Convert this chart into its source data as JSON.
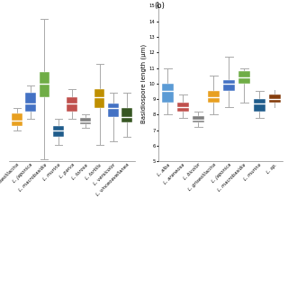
{
  "panel_a": {
    "species": [
      "L. griseolilacina",
      "L. japonica",
      "L. macrobasidia",
      "L. murina",
      "L. parva",
      "L. torosa",
      "L. tortilis",
      "L. versicolor",
      "L. vinceoavellanea"
    ],
    "colors": [
      "#E8A020",
      "#4472C4",
      "#70AD47",
      "#1F5C8B",
      "#C0504D",
      "#808080",
      "#BF8F00",
      "#4472C4",
      "#375623"
    ],
    "boxes": [
      {
        "whislo": 7.8,
        "q1": 8.2,
        "med": 8.7,
        "q3": 9.3,
        "whishi": 9.8
      },
      {
        "whislo": 8.8,
        "q1": 9.5,
        "med": 10.2,
        "q3": 11.2,
        "whishi": 11.8
      },
      {
        "whislo": 5.2,
        "q1": 10.8,
        "med": 12.0,
        "q3": 13.0,
        "whishi": 17.8
      },
      {
        "whislo": 6.5,
        "q1": 7.2,
        "med": 7.8,
        "q3": 8.2,
        "whishi": 8.8
      },
      {
        "whislo": 8.8,
        "q1": 9.5,
        "med": 10.2,
        "q3": 10.8,
        "whishi": 11.5
      },
      {
        "whislo": 8.0,
        "q1": 8.3,
        "med": 8.6,
        "q3": 8.9,
        "whishi": 9.2
      },
      {
        "whislo": 6.5,
        "q1": 9.8,
        "med": 10.8,
        "q3": 11.5,
        "whishi": 13.8
      },
      {
        "whislo": 6.8,
        "q1": 9.0,
        "med": 9.8,
        "q3": 10.2,
        "whishi": 11.2
      },
      {
        "whislo": 7.2,
        "q1": 8.5,
        "med": 9.0,
        "q3": 9.8,
        "whishi": 11.2
      }
    ],
    "ylim": [
      5,
      19
    ]
  },
  "panel_b": {
    "species": [
      "L. alba",
      "L. araneosa",
      "L. bicolor",
      "L. griseolilacina",
      "L. japonica",
      "L. macrobasidia",
      "L. murina"
    ],
    "colors": [
      "#5B9BD5",
      "#C0504D",
      "#808080",
      "#E8A020",
      "#4472C4",
      "#70AD47",
      "#1F5C8B"
    ],
    "boxes": [
      {
        "whislo": 8.0,
        "q1": 8.8,
        "med": 9.5,
        "q3": 10.0,
        "whishi": 11.0
      },
      {
        "whislo": 7.8,
        "q1": 8.2,
        "med": 8.5,
        "q3": 8.8,
        "whishi": 9.3
      },
      {
        "whislo": 7.2,
        "q1": 7.5,
        "med": 7.7,
        "q3": 7.9,
        "whishi": 8.2
      },
      {
        "whislo": 8.0,
        "q1": 8.8,
        "med": 9.1,
        "q3": 9.5,
        "whishi": 10.5
      },
      {
        "whislo": 8.5,
        "q1": 9.5,
        "med": 10.0,
        "q3": 10.2,
        "whishi": 11.7
      },
      {
        "whislo": 8.8,
        "q1": 10.0,
        "med": 10.4,
        "q3": 10.8,
        "whishi": 11.0
      },
      {
        "whislo": 7.8,
        "q1": 8.2,
        "med": 8.7,
        "q3": 9.0,
        "whishi": 9.5
      }
    ],
    "partial_box": {
      "color": "#843C0C",
      "whislo": 8.5,
      "q1": 8.8,
      "med": 9.0,
      "q3": 9.3,
      "whishi": 9.6
    },
    "ylabel": "Basidiospore length (μm)",
    "ylim": [
      5,
      15
    ],
    "yticks": [
      5,
      6,
      7,
      8,
      9,
      10,
      11,
      12,
      13,
      14,
      15
    ]
  },
  "panel_b_label": "(b)",
  "bg_color": "#FFFFFF",
  "whisker_color": "#AAAAAA",
  "median_color": "#FFFFFF",
  "box_edge_color": "#FFFFFF",
  "box_width": 0.38,
  "whisker_lw": 0.7,
  "median_lw": 1.0,
  "label_fontsize": 3.8,
  "ylabel_fontsize": 5.0
}
